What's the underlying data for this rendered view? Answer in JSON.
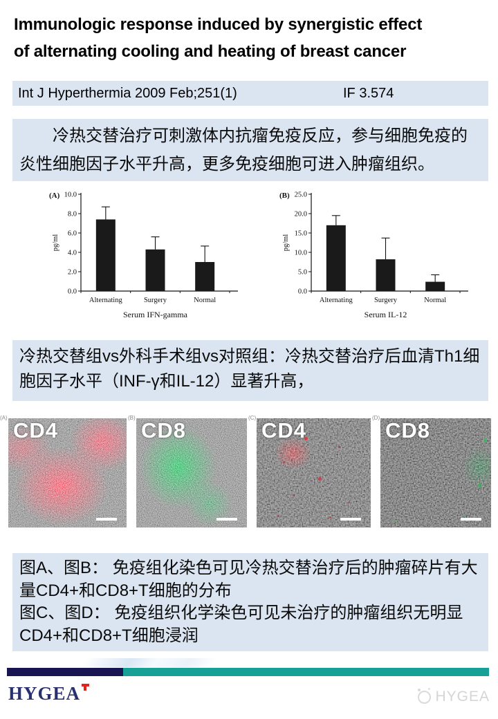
{
  "header": {
    "title_line1": "Immunologic response induced by synergistic effect",
    "title_line2": "of alternating cooling and heating of breast cancer"
  },
  "citation": {
    "journal": "Int J Hyperthermia 2009 Feb;251(1)",
    "impact_factor": "IF 3.574"
  },
  "summary1": {
    "text": "冷热交替治疗可刺激体内抗瘤免疫反应，参与细胞免疫的炎性细胞因子水平升高，更多免疫细胞可进入肿瘤组织。"
  },
  "summary2": {
    "text": "冷热交替组vs外科手术组vs对照组：冷热交替治疗后血清Th1细胞因子水平（INF-γ和IL-12）显著升高，"
  },
  "figure_caption": {
    "line1": "图A、图B： 免疫组化染色可见冷热交替治疗后的肿瘤碎片有大量CD4+和CD8+T细胞的分布",
    "line2": "图C、图D： 免疫组织化学染色可见未治疗的肿瘤组织无明显CD4+和CD8+T细胞浸润"
  },
  "chart_data": [
    {
      "type": "bar",
      "panel_label": "(A)",
      "categories": [
        "Alternating",
        "Surgery",
        "Normal"
      ],
      "values": [
        7.4,
        4.3,
        3.0
      ],
      "errors_upper": [
        1.3,
        1.3,
        1.65
      ],
      "xlabel": "Serum IFN-gamma",
      "ylabel": "pg/ml",
      "ylim": [
        0,
        10
      ],
      "ytick_step": 2,
      "ytick_labels": [
        "0.0",
        "2.0",
        "4.0",
        "6.0",
        "8.0",
        "10.0"
      ],
      "bar_color": "#1a1a1a",
      "grid": false,
      "legend": false
    },
    {
      "type": "bar",
      "panel_label": "(B)",
      "categories": [
        "Alternating",
        "Surgery",
        "Normal"
      ],
      "values": [
        17.0,
        8.2,
        2.4
      ],
      "errors_upper": [
        2.5,
        5.5,
        1.8
      ],
      "xlabel": "Serum IL-12",
      "ylabel": "pg/ml",
      "ylim": [
        0,
        25
      ],
      "ytick_step": 5,
      "ytick_labels": [
        "0.0",
        "5.0",
        "10.0",
        "15.0",
        "20.0",
        "25.0"
      ],
      "bar_color": "#1a1a1a",
      "grid": false,
      "legend": false
    }
  ],
  "micrographs": [
    {
      "corner_label": "(A)",
      "marker": "CD4",
      "stain_color": "#c01f2d"
    },
    {
      "corner_label": "(B)",
      "marker": "CD8",
      "stain_color": "#1d9a4b"
    },
    {
      "corner_label": "(C)",
      "marker": "CD4",
      "stain_color": "#c01f2d"
    },
    {
      "corner_label": "(D)",
      "marker": "CD8",
      "stain_color": "#1d9a4b"
    }
  ],
  "footer": {
    "brand": "HYGEA",
    "watermark": "HYGEA"
  },
  "colors": {
    "highlight_bg": "#dbe5f1",
    "footer_navy": "#191552",
    "footer_teal": "#17a095",
    "brand_navy": "#28306f",
    "brand_red": "#e32219",
    "watermark_gray": "#d5d5d5"
  }
}
